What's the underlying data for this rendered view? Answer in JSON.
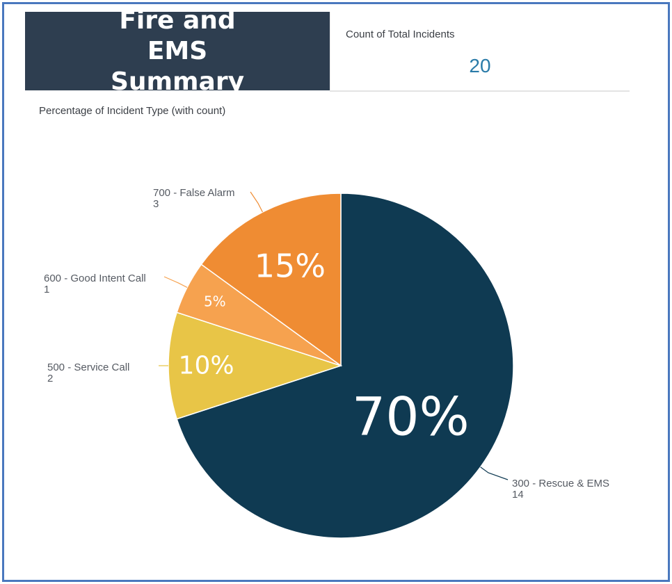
{
  "header": {
    "title": "Fire and EMS Summary"
  },
  "kpi": {
    "label": "Count of Total Incidents",
    "value": "20"
  },
  "chart_data": {
    "type": "pie",
    "title": "Percentage of Incident Type (with count)",
    "slices": [
      {
        "category": "300 - Rescue & EMS",
        "count": 14,
        "percent": 70,
        "label": "70%",
        "color": "#0f3a52"
      },
      {
        "category": "500 - Service Call",
        "count": 2,
        "percent": 10,
        "label": "10%",
        "color": "#e8c547"
      },
      {
        "category": "600 - Good Intent Call",
        "count": 1,
        "percent": 5,
        "label": "5%",
        "color": "#f6a24f"
      },
      {
        "category": "700 - False Alarm",
        "count": 3,
        "percent": 15,
        "label": "15%",
        "color": "#ef8c33"
      }
    ],
    "legend": "callout labels beside slices"
  }
}
